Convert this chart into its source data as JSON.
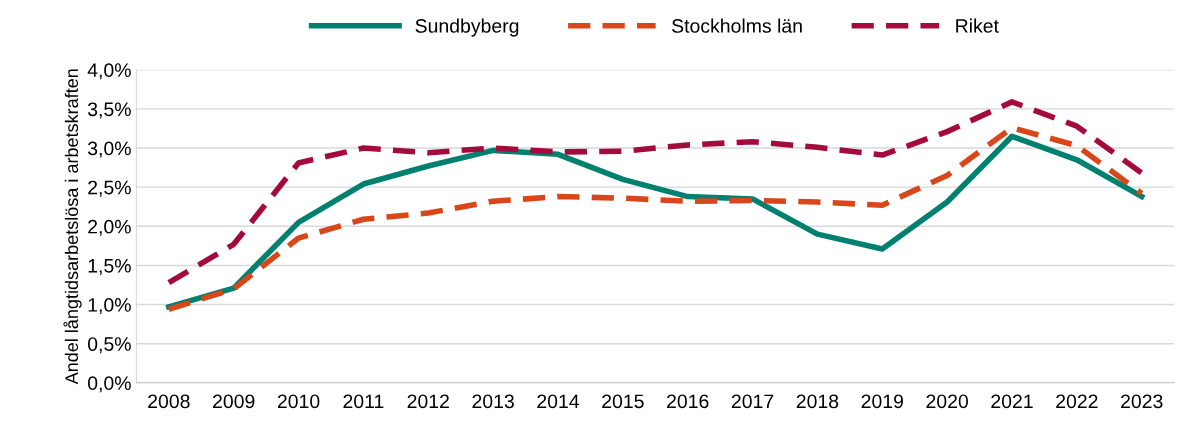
{
  "chart_data": {
    "type": "line",
    "ylabel": "Andel långtidsarbetslösa i arbetskraften",
    "categories": [
      "2008",
      "2009",
      "2010",
      "2011",
      "2012",
      "2013",
      "2014",
      "2015",
      "2016",
      "2017",
      "2018",
      "2019",
      "2020",
      "2021",
      "2022",
      "2023"
    ],
    "series": [
      {
        "name": "Sundbyberg",
        "color": "#00806e",
        "line_style": "solid",
        "values": [
          0.97,
          1.21,
          2.05,
          2.54,
          2.77,
          2.97,
          2.92,
          2.6,
          2.38,
          2.35,
          1.9,
          1.71,
          2.31,
          3.15,
          2.85,
          2.38
        ]
      },
      {
        "name": "Stockholms län",
        "color": "#d9461a",
        "line_style": "dashed",
        "values": [
          0.94,
          1.2,
          1.85,
          2.09,
          2.17,
          2.32,
          2.38,
          2.36,
          2.32,
          2.33,
          2.31,
          2.27,
          2.65,
          3.26,
          3.03,
          2.42
        ]
      },
      {
        "name": "Riket",
        "color": "#a50a3c",
        "line_style": "dashed",
        "values": [
          1.28,
          1.77,
          2.81,
          3.0,
          2.94,
          3.0,
          2.95,
          2.96,
          3.04,
          3.08,
          3.01,
          2.91,
          3.21,
          3.59,
          3.28,
          2.68
        ]
      }
    ],
    "ylim": [
      0,
      4
    ],
    "yticks": [
      {
        "value": 0,
        "label": "0,0%"
      },
      {
        "value": 0.5,
        "label": "0,5%"
      },
      {
        "value": 1,
        "label": "1,0%"
      },
      {
        "value": 1.5,
        "label": "1,5%"
      },
      {
        "value": 2,
        "label": "2,0%"
      },
      {
        "value": 2.5,
        "label": "2,5%"
      },
      {
        "value": 3,
        "label": "3,0%"
      },
      {
        "value": 3.5,
        "label": "3,5%"
      },
      {
        "value": 4,
        "label": "4,0%"
      }
    ],
    "grid": "y",
    "legend": "top",
    "marker": "none"
  }
}
